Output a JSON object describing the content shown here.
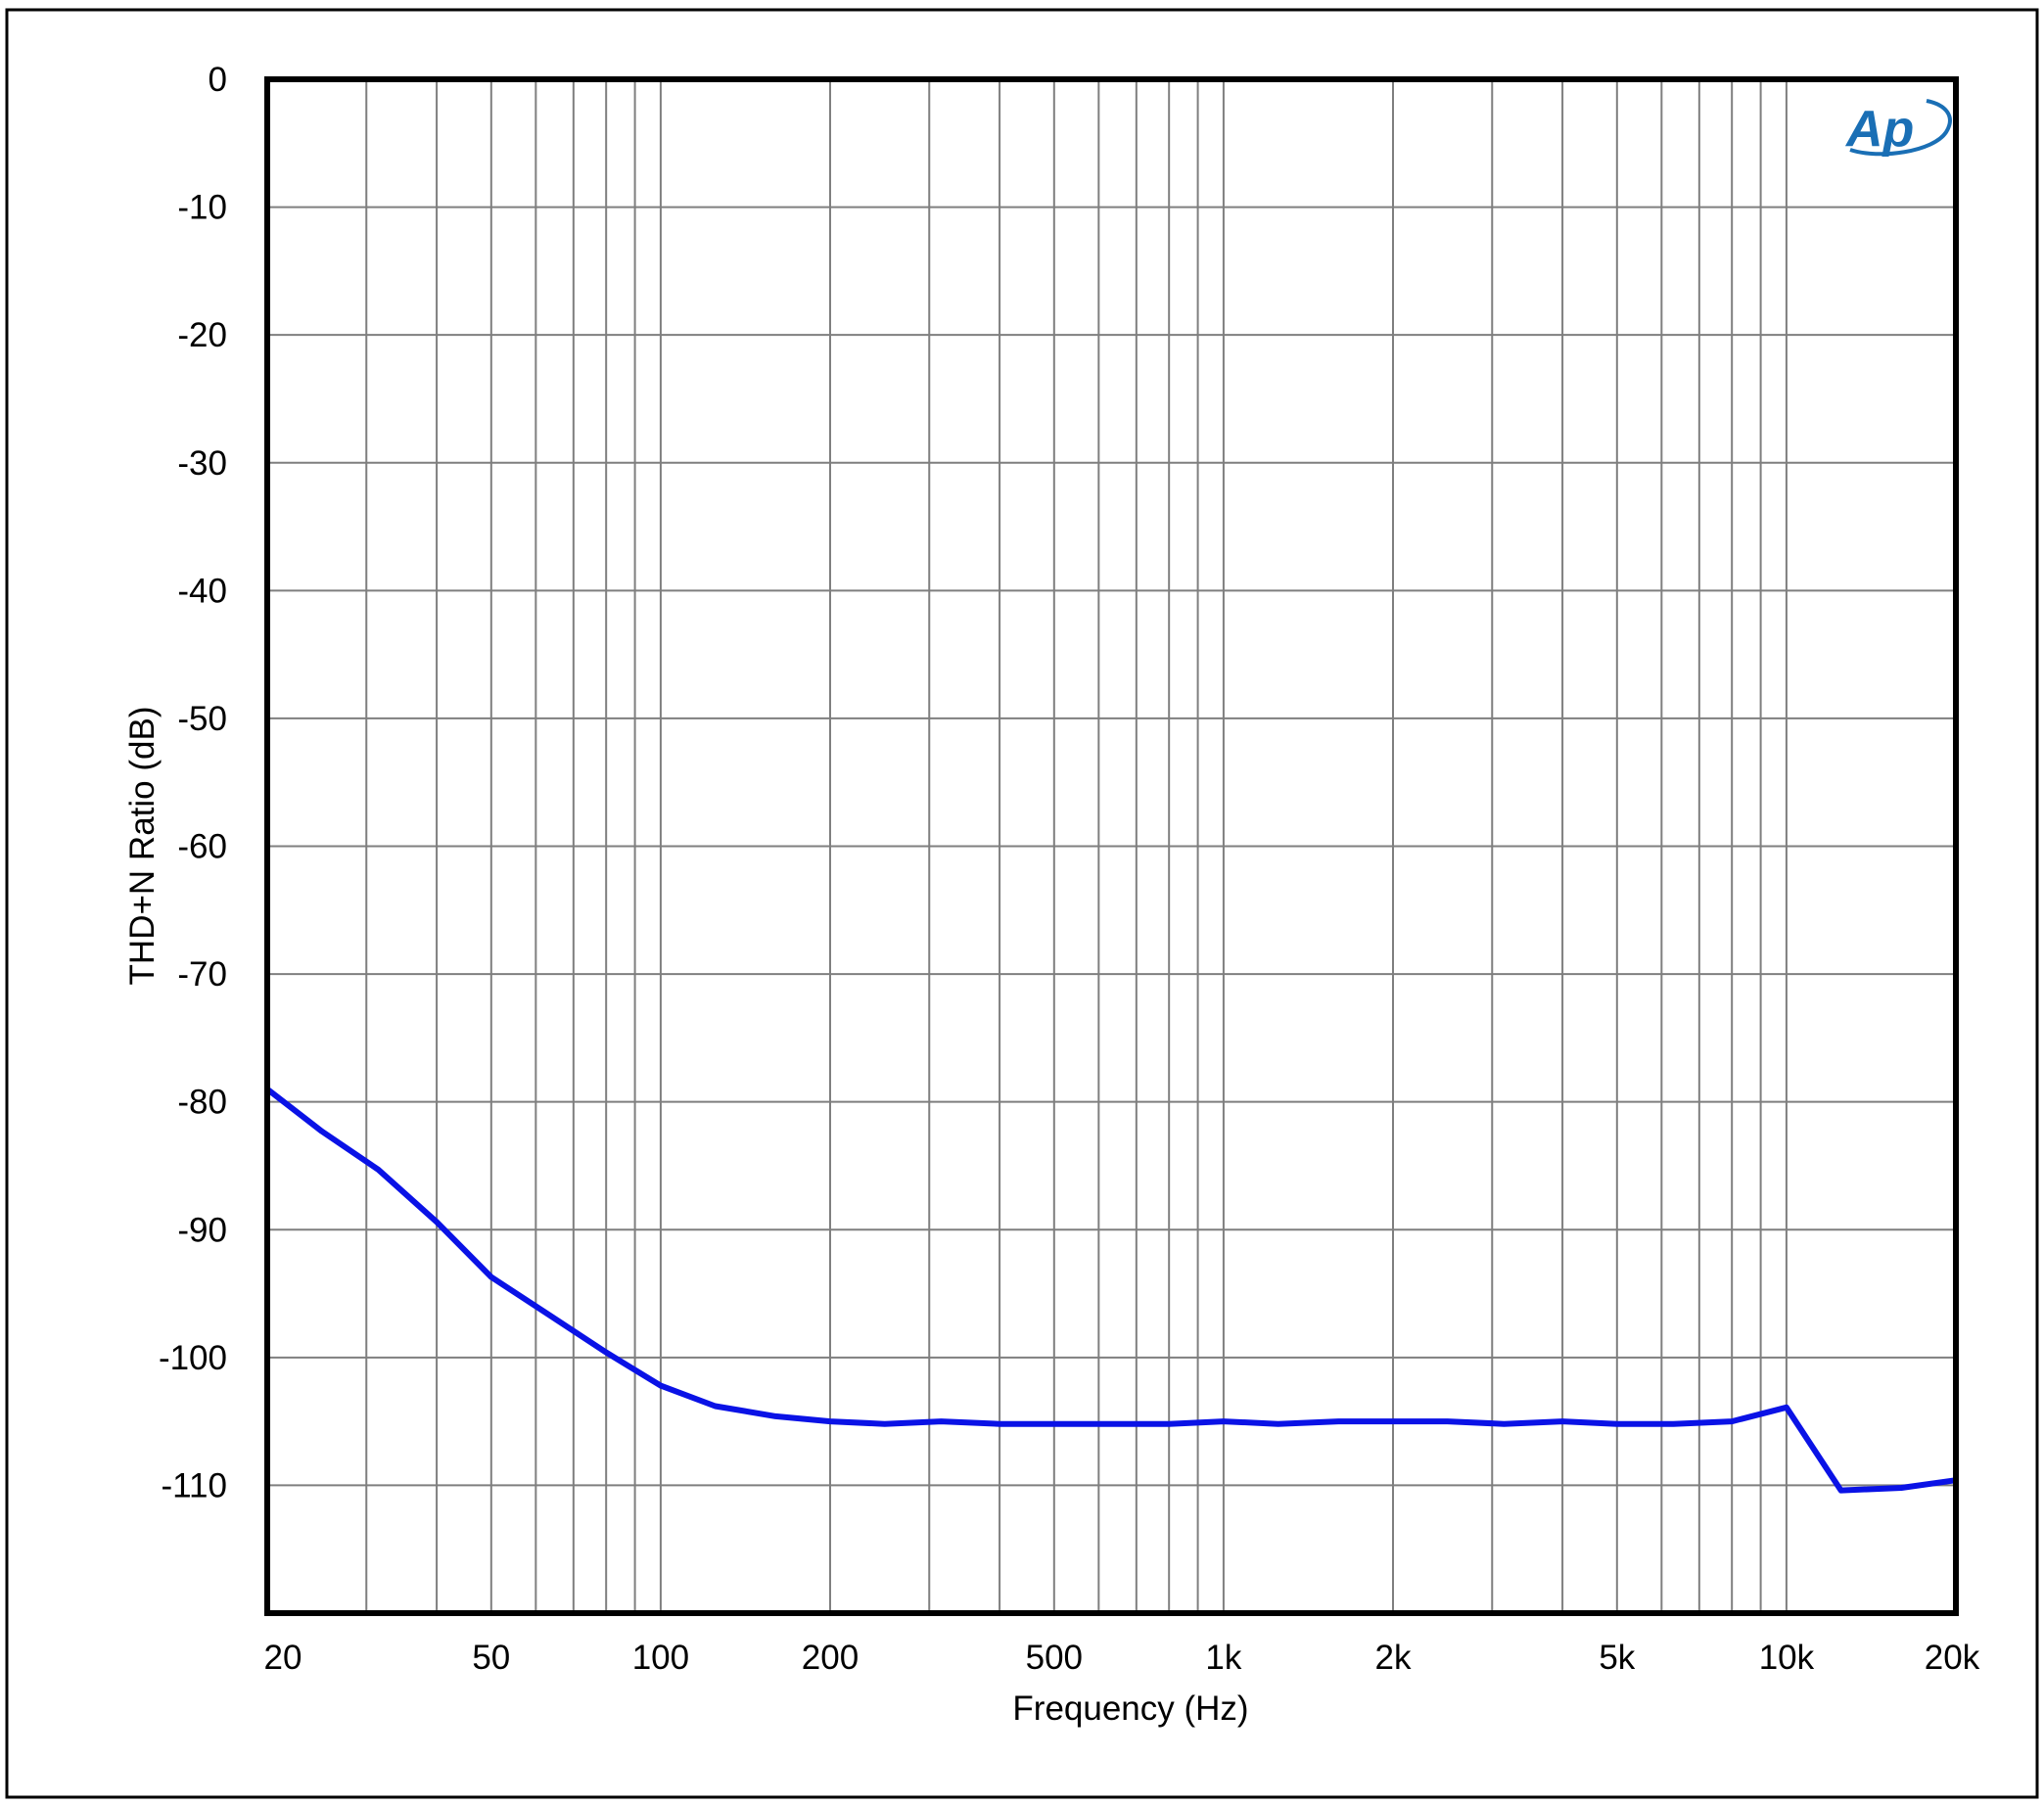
{
  "chart_data": {
    "type": "line",
    "title": "",
    "xlabel": "Frequency (Hz)",
    "ylabel": "THD+N Ratio (dB)",
    "x_scale": "log",
    "xlim": [
      20,
      20000
    ],
    "ylim": [
      -120,
      0
    ],
    "grid": true,
    "x_ticks": [
      20,
      50,
      100,
      200,
      500,
      1000,
      2000,
      5000,
      10000,
      20000
    ],
    "x_tick_labels": [
      "20",
      "50",
      "100",
      "200",
      "500",
      "1k",
      "2k",
      "5k",
      "10k",
      "20k"
    ],
    "y_ticks": [
      0,
      -10,
      -20,
      -30,
      -40,
      -50,
      -60,
      -70,
      -80,
      -90,
      -100,
      -110
    ],
    "y_tick_labels": [
      "0",
      "-10",
      "-20",
      "-30",
      "-40",
      "-50",
      "-60",
      "-70",
      "-80",
      "-90",
      "-100",
      "-110"
    ],
    "series": [
      {
        "color": "#0a12e6",
        "x": [
          20,
          25,
          31.5,
          40,
          50,
          63,
          80,
          100,
          125,
          160,
          200,
          250,
          315,
          400,
          500,
          630,
          800,
          1000,
          1250,
          1600,
          2000,
          2500,
          3150,
          4000,
          5000,
          6300,
          8000,
          10000,
          12500,
          16000,
          20000
        ],
        "y": [
          -79.0,
          -82.3,
          -85.3,
          -89.4,
          -93.7,
          -96.6,
          -99.6,
          -102.2,
          -103.8,
          -104.6,
          -105.0,
          -105.2,
          -105.0,
          -105.2,
          -105.2,
          -105.2,
          -105.2,
          -105.0,
          -105.2,
          -105.0,
          -105.0,
          -105.0,
          -105.2,
          -105.0,
          -105.2,
          -105.2,
          -105.0,
          -103.9,
          -110.4,
          -110.2,
          -109.6
        ]
      }
    ],
    "logo": {
      "text": "Ap",
      "color": "#1a6fb5"
    },
    "frame_color": "#000000",
    "grid_color": "#7f7f7f"
  }
}
